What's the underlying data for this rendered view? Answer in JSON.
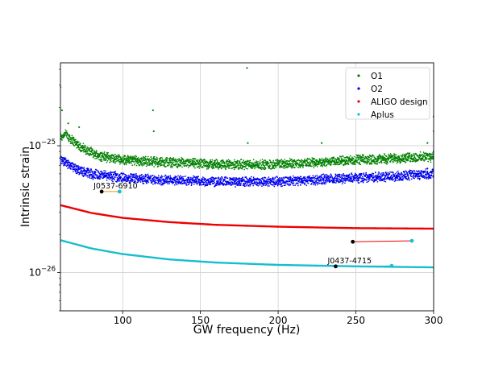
{
  "chart_data": {
    "type": "scatter",
    "xlabel": "GW frequency (Hz)",
    "ylabel": "Intrinsic strain",
    "xlim": [
      60,
      300
    ],
    "ylim": [
      5e-27,
      4.5e-25
    ],
    "yscale": "log",
    "grid": true,
    "legend_position": "top-right",
    "x_ticks": [
      {
        "value": 100,
        "label": "100"
      },
      {
        "value": 150,
        "label": "150"
      },
      {
        "value": 200,
        "label": "200"
      },
      {
        "value": 250,
        "label": "250"
      },
      {
        "value": 300,
        "label": "300"
      }
    ],
    "y_ticks": [
      {
        "value": 1e-25,
        "base": "10",
        "exp": "−25"
      },
      {
        "value": 1e-26,
        "base": "10",
        "exp": "−26"
      }
    ],
    "series": [
      {
        "name": "O1",
        "color": "#008000",
        "kind": "noise-curve",
        "x": [
          60,
          63,
          66,
          70,
          74,
          78,
          82,
          86,
          90,
          95,
          100,
          110,
          120,
          130,
          150,
          170,
          190,
          200,
          220,
          240,
          260,
          280,
          300
        ],
        "y": [
          1.15e-25,
          1.25e-25,
          1.15e-25,
          1.05e-25,
          9.6e-26,
          9e-26,
          8.6e-26,
          8.3e-26,
          8.1e-26,
          7.9e-26,
          7.8e-26,
          7.6e-26,
          7.5e-26,
          7.4e-26,
          7.2e-26,
          7.1e-26,
          7.1e-26,
          7.2e-26,
          7.3e-26,
          7.6e-26,
          7.8e-26,
          8e-26,
          8.2e-26
        ],
        "outliers": [
          {
            "x": 60,
            "y": 2.9e-25
          },
          {
            "x": 61,
            "y": 1.9e-25
          },
          {
            "x": 65,
            "y": 1.5e-25
          },
          {
            "x": 72,
            "y": 1.4e-25
          },
          {
            "x": 119.5,
            "y": 1.9e-25
          },
          {
            "x": 120,
            "y": 1.3e-25
          },
          {
            "x": 180,
            "y": 4.1e-25
          },
          {
            "x": 180.5,
            "y": 1.05e-25
          },
          {
            "x": 228,
            "y": 1.05e-25
          },
          {
            "x": 296,
            "y": 1.05e-25
          },
          {
            "x": 300,
            "y": 1.7e-25
          },
          {
            "x": 300,
            "y": 1.3e-25
          }
        ]
      },
      {
        "name": "O2",
        "color": "#0000ee",
        "kind": "noise-curve",
        "x": [
          60,
          63,
          66,
          70,
          75,
          80,
          90,
          100,
          120,
          140,
          160,
          180,
          200,
          220,
          240,
          260,
          280,
          300
        ],
        "y": [
          7.8e-26,
          7.4e-26,
          7e-26,
          6.5e-26,
          6.2e-26,
          6e-26,
          5.8e-26,
          5.6e-26,
          5.4e-26,
          5.3e-26,
          5.2e-26,
          5.2e-26,
          5.25e-26,
          5.35e-26,
          5.5e-26,
          5.65e-26,
          5.8e-26,
          6e-26
        ],
        "outliers": [
          {
            "x": 296,
            "y": 6.6e-26
          },
          {
            "x": 300,
            "y": 9e-26
          }
        ]
      },
      {
        "name": "ALIGO design",
        "color": "#ee0000",
        "kind": "smooth-curve",
        "x": [
          60,
          80,
          100,
          130,
          160,
          200,
          250,
          300
        ],
        "y": [
          3.4e-26,
          2.95e-26,
          2.7e-26,
          2.5e-26,
          2.38e-26,
          2.3e-26,
          2.24e-26,
          2.22e-26
        ]
      },
      {
        "name": "Aplus",
        "color": "#17becf",
        "kind": "smooth-curve",
        "x": [
          60,
          80,
          100,
          130,
          160,
          200,
          250,
          300
        ],
        "y": [
          1.8e-26,
          1.55e-26,
          1.4e-26,
          1.27e-26,
          1.2e-26,
          1.15e-26,
          1.12e-26,
          1.1e-26
        ]
      }
    ],
    "pulsars": [
      {
        "label": "J0537-6910",
        "line_color": "#ff8c00",
        "start": {
          "x": 86.5,
          "y": 4.35e-26,
          "color": "#000000"
        },
        "end": {
          "x": 98,
          "y": 4.35e-26,
          "color": "#17becf"
        }
      },
      {
        "label": "",
        "line_color": "#ee0000",
        "start": {
          "x": 248,
          "y": 1.75e-26,
          "color": "#000000"
        },
        "end": {
          "x": 286,
          "y": 1.78e-26,
          "color": "#17becf"
        }
      },
      {
        "label": "J0437-4715",
        "line_color": "#17becf",
        "start": {
          "x": 237,
          "y": 1.12e-26,
          "color": "#000000"
        },
        "end": {
          "x": 273,
          "y": 1.13e-26,
          "color": "#17becf"
        }
      }
    ]
  }
}
